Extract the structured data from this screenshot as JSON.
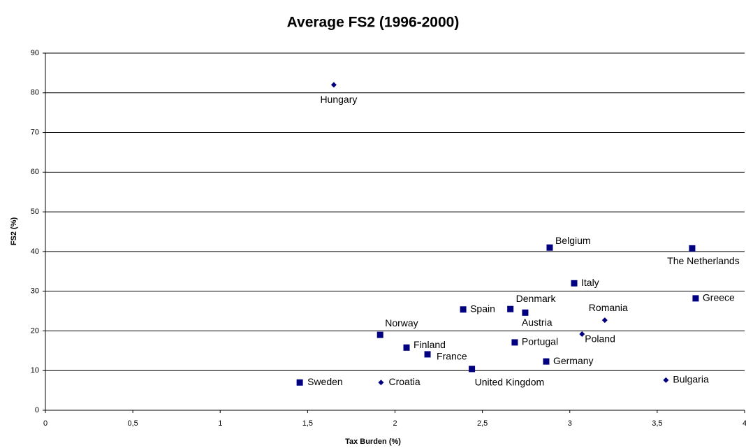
{
  "chart_data": {
    "type": "scatter",
    "title": "Average FS2 (1996-2000)",
    "x_label": "Tax Burden (%)",
    "y_label": "FS2 (%)",
    "xlim": [
      0,
      4
    ],
    "ylim": [
      0,
      90
    ],
    "xticks": [
      0,
      {
        "value": 0.5,
        "label": "0,5"
      },
      1,
      {
        "value": 1.5,
        "label": "1,5"
      },
      2,
      {
        "value": 2.5,
        "label": "2,5"
      },
      3,
      {
        "value": 3.5,
        "label": "3,5"
      },
      4
    ],
    "yticks": [
      0,
      10,
      20,
      30,
      40,
      50,
      60,
      70,
      80,
      90
    ],
    "grid": true,
    "series": [
      {
        "color": "#000080",
        "marker": "square",
        "labels": [
          "Belgium",
          "The Netherlands",
          "Italy",
          "Greece",
          "Spain",
          "Denmark",
          "Austria",
          "Norway",
          "Finland",
          "Portugal",
          "France",
          "Germany",
          "United Kingdom",
          "Sweden"
        ],
        "x": [
          2.885,
          3.7,
          3.025,
          3.72,
          2.39,
          2.66,
          2.745,
          1.915,
          2.066,
          2.685,
          2.186,
          2.865,
          2.44,
          1.455
        ],
        "values": [
          41.0,
          40.8,
          32.0,
          28.2,
          25.4,
          25.5,
          24.6,
          19.0,
          15.8,
          17.1,
          14.1,
          12.3,
          10.4,
          7.0
        ]
      },
      {
        "color": "#000080",
        "marker": "diamond",
        "labels": [
          "Hungary",
          "Romania",
          "Poland",
          "Croatia",
          "Bulgaria"
        ],
        "x": [
          1.65,
          3.2,
          3.07,
          1.92,
          3.55
        ],
        "values": [
          82,
          22.7,
          19.2,
          7.0,
          7.6
        ]
      }
    ]
  }
}
